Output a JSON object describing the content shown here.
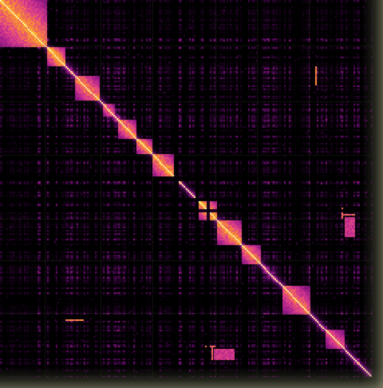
{
  "figure": {
    "kind": "contact-heatmap",
    "colormap": [
      "#000000",
      "#2a0430",
      "#6a0f6e",
      "#a51f8a",
      "#e0408a",
      "#f6823b",
      "#fbc52c",
      "#fff1a0"
    ],
    "background": "#000000",
    "edge_tint": "#9a9a78"
  },
  "chart_data": {
    "type": "heatmap",
    "title": "",
    "xlabel": "",
    "ylabel": "",
    "symmetric": true,
    "n_bins": 240,
    "diagonal_domains": [
      {
        "start": 0,
        "end": 30,
        "strength": 0.85
      },
      {
        "start": 30,
        "end": 42,
        "strength": 0.9
      },
      {
        "start": 48,
        "end": 64,
        "strength": 0.8
      },
      {
        "start": 66,
        "end": 74,
        "strength": 0.75
      },
      {
        "start": 76,
        "end": 88,
        "strength": 0.8
      },
      {
        "start": 88,
        "end": 98,
        "strength": 0.85
      },
      {
        "start": 98,
        "end": 112,
        "strength": 0.85
      },
      {
        "start": 128,
        "end": 140,
        "strength": 0.9
      },
      {
        "start": 140,
        "end": 156,
        "strength": 0.85
      },
      {
        "start": 156,
        "end": 168,
        "strength": 0.8
      },
      {
        "start": 182,
        "end": 200,
        "strength": 0.75
      },
      {
        "start": 210,
        "end": 222,
        "strength": 0.7
      }
    ],
    "offdiagonal_hotspots": [
      {
        "row": 203,
        "col_start": 42,
        "col_end": 53,
        "strength": 0.75
      },
      {
        "row_start": 42,
        "row_end": 53,
        "col": 203,
        "strength": 0.75
      },
      {
        "row_start": 220,
        "row_end": 228,
        "col": 136,
        "strength": 0.7
      },
      {
        "row": 136,
        "col_start": 220,
        "col_end": 228,
        "strength": 0.7
      },
      {
        "row_start": 132,
        "row_end": 138,
        "col": 220,
        "strength": 0.7
      },
      {
        "row_start": 138,
        "row_end": 150,
        "col_start": 222,
        "col_end": 228,
        "strength": 0.6
      }
    ],
    "gap_bins": [
      112,
      113,
      114,
      126,
      127,
      133,
      134
    ]
  }
}
